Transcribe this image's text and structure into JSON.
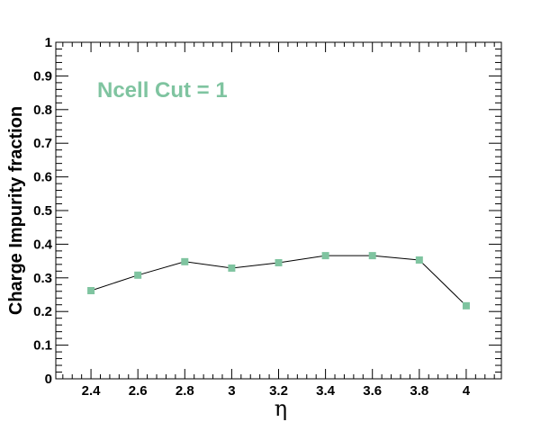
{
  "chart_data": {
    "type": "line",
    "xlabel": "η",
    "ylabel": "Charge Impurity fraction",
    "xlim": [
      2.25,
      4.15
    ],
    "ylim": [
      0,
      1
    ],
    "x_ticks": [
      "2.4",
      "2.6",
      "2.8",
      "3",
      "3.2",
      "3.4",
      "3.6",
      "3.8",
      "4"
    ],
    "y_ticks": [
      "0",
      "0.1",
      "0.2",
      "0.3",
      "0.4",
      "0.5",
      "0.6",
      "0.7",
      "0.8",
      "0.9",
      "1"
    ],
    "annotation": "Ncell Cut = 1",
    "grid": false,
    "series": [
      {
        "x": [
          2.4,
          2.6,
          2.8,
          3.0,
          3.2,
          3.4,
          3.6,
          3.8,
          4.0
        ],
        "y": [
          0.262,
          0.308,
          0.348,
          0.329,
          0.345,
          0.366,
          0.366,
          0.353,
          0.217
        ],
        "marker": "square",
        "marker_color": "#7fc4a0",
        "line_color": "#000000"
      }
    ]
  }
}
